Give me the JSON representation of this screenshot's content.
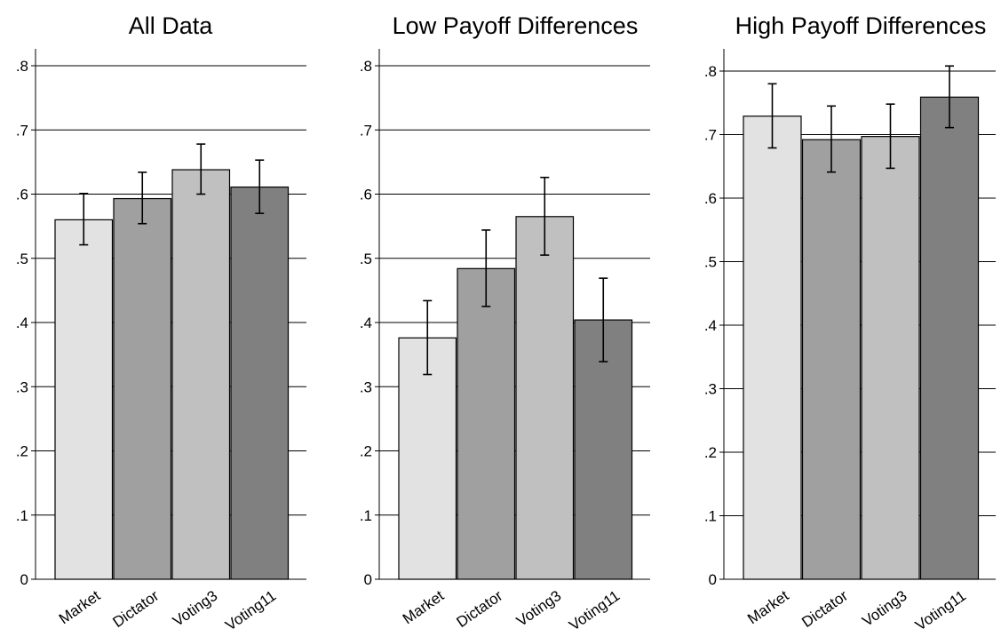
{
  "chart_data": [
    {
      "type": "bar",
      "title": "All Data",
      "categories": [
        "Market",
        "Dictator",
        "Voting3",
        "Voting11"
      ],
      "values": [
        0.56,
        0.593,
        0.638,
        0.611
      ],
      "error_low": [
        0.521,
        0.554,
        0.6,
        0.57
      ],
      "error_high": [
        0.601,
        0.634,
        0.678,
        0.653
      ],
      "yticks": [
        "0",
        ".1",
        ".2",
        ".3",
        ".4",
        ".5",
        ".6",
        ".7",
        ".8"
      ],
      "ylim": [
        0,
        0.825
      ],
      "grid": true,
      "bar_colors": [
        "#e2e2e2",
        "#a0a0a0",
        "#c0c0c0",
        "#808080"
      ]
    },
    {
      "type": "bar",
      "title": "Low Payoff Differences",
      "categories": [
        "Market",
        "Dictator",
        "Voting3",
        "Voting11"
      ],
      "values": [
        0.376,
        0.484,
        0.565,
        0.404
      ],
      "error_low": [
        0.319,
        0.425,
        0.505,
        0.339
      ],
      "error_high": [
        0.434,
        0.544,
        0.626,
        0.469
      ],
      "yticks": [
        "0",
        ".1",
        ".2",
        ".3",
        ".4",
        ".5",
        ".6",
        ".7",
        ".8"
      ],
      "ylim": [
        0,
        0.825
      ],
      "grid": true,
      "bar_colors": [
        "#e2e2e2",
        "#a0a0a0",
        "#c0c0c0",
        "#808080"
      ]
    },
    {
      "type": "bar",
      "title": "High Payoff Differences",
      "categories": [
        "Market",
        "Dictator",
        "Voting3",
        "Voting11"
      ],
      "values": [
        0.729,
        0.692,
        0.697,
        0.759
      ],
      "error_low": [
        0.679,
        0.641,
        0.647,
        0.711
      ],
      "error_high": [
        0.78,
        0.745,
        0.748,
        0.808
      ],
      "yticks": [
        "0",
        ".1",
        ".2",
        ".3",
        ".4",
        ".5",
        ".6",
        ".7",
        ".8"
      ],
      "ylim": [
        0,
        0.825
      ],
      "grid": true,
      "bar_colors": [
        "#e2e2e2",
        "#a0a0a0",
        "#c0c0c0",
        "#808080"
      ]
    }
  ]
}
